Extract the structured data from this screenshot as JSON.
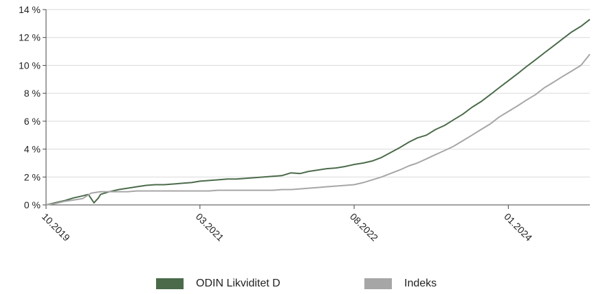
{
  "chart_data": {
    "type": "line",
    "title": "",
    "xlabel": "",
    "ylabel": "",
    "x_range": [
      "2019-10",
      "2024-10"
    ],
    "ylim": [
      0,
      14
    ],
    "y_ticks": [
      0,
      2,
      4,
      6,
      8,
      10,
      12,
      14
    ],
    "y_tick_labels": [
      "0 %",
      "2 %",
      "4 %",
      "6 %",
      "8 %",
      "10 %",
      "12 %",
      "14 %"
    ],
    "x_tick_labels": [
      "10.2019",
      "03.2021",
      "08.2022",
      "01.2024"
    ],
    "x_tick_values": [
      "2019-10",
      "2021-03",
      "2022-08",
      "2024-01"
    ],
    "grid": "horizontal",
    "legend_position": "bottom",
    "series": [
      {
        "name": "ODIN Likviditet D",
        "color": "#4a6a4a",
        "points": [
          [
            "2019-10",
            0.0
          ],
          [
            "2019-11",
            0.15
          ],
          [
            "2019-12",
            0.3
          ],
          [
            "2020-01",
            0.5
          ],
          [
            "2020-02",
            0.65
          ],
          [
            "2020-02-20",
            0.75
          ],
          [
            "2020-03-10",
            0.15
          ],
          [
            "2020-03-25",
            0.5
          ],
          [
            "2020-04",
            0.75
          ],
          [
            "2020-05",
            0.95
          ],
          [
            "2020-06",
            1.1
          ],
          [
            "2020-07",
            1.2
          ],
          [
            "2020-08",
            1.3
          ],
          [
            "2020-09",
            1.4
          ],
          [
            "2020-10",
            1.45
          ],
          [
            "2020-11",
            1.45
          ],
          [
            "2020-12",
            1.5
          ],
          [
            "2021-01",
            1.55
          ],
          [
            "2021-02",
            1.6
          ],
          [
            "2021-03",
            1.7
          ],
          [
            "2021-04",
            1.75
          ],
          [
            "2021-05",
            1.8
          ],
          [
            "2021-06",
            1.85
          ],
          [
            "2021-07",
            1.85
          ],
          [
            "2021-08",
            1.9
          ],
          [
            "2021-09",
            1.95
          ],
          [
            "2021-10",
            2.0
          ],
          [
            "2021-11",
            2.05
          ],
          [
            "2021-12",
            2.1
          ],
          [
            "2022-01",
            2.3
          ],
          [
            "2022-02",
            2.25
          ],
          [
            "2022-03",
            2.4
          ],
          [
            "2022-04",
            2.5
          ],
          [
            "2022-05",
            2.6
          ],
          [
            "2022-06",
            2.65
          ],
          [
            "2022-07",
            2.75
          ],
          [
            "2022-08",
            2.9
          ],
          [
            "2022-09",
            3.0
          ],
          [
            "2022-10",
            3.15
          ],
          [
            "2022-11",
            3.4
          ],
          [
            "2022-12",
            3.75
          ],
          [
            "2023-01",
            4.1
          ],
          [
            "2023-02",
            4.5
          ],
          [
            "2023-03",
            4.8
          ],
          [
            "2023-04",
            5.0
          ],
          [
            "2023-05",
            5.4
          ],
          [
            "2023-06",
            5.7
          ],
          [
            "2023-07",
            6.1
          ],
          [
            "2023-08",
            6.5
          ],
          [
            "2023-09",
            7.0
          ],
          [
            "2023-10",
            7.4
          ],
          [
            "2023-11",
            7.9
          ],
          [
            "2023-12",
            8.4
          ],
          [
            "2024-01",
            8.9
          ],
          [
            "2024-02",
            9.4
          ],
          [
            "2024-03",
            9.9
          ],
          [
            "2024-04",
            10.4
          ],
          [
            "2024-05",
            10.9
          ],
          [
            "2024-06",
            11.4
          ],
          [
            "2024-07",
            11.9
          ],
          [
            "2024-08",
            12.4
          ],
          [
            "2024-09",
            12.8
          ],
          [
            "2024-10",
            13.3
          ]
        ]
      },
      {
        "name": "Indeks",
        "color": "#a6a6a6",
        "points": [
          [
            "2019-10",
            0.0
          ],
          [
            "2019-11",
            0.1
          ],
          [
            "2019-12",
            0.25
          ],
          [
            "2020-01",
            0.35
          ],
          [
            "2020-02",
            0.45
          ],
          [
            "2020-03",
            0.85
          ],
          [
            "2020-04",
            0.95
          ],
          [
            "2020-05",
            0.95
          ],
          [
            "2020-06",
            0.95
          ],
          [
            "2020-07",
            0.95
          ],
          [
            "2020-08",
            1.0
          ],
          [
            "2020-09",
            1.0
          ],
          [
            "2020-10",
            1.0
          ],
          [
            "2020-11",
            1.0
          ],
          [
            "2020-12",
            1.0
          ],
          [
            "2021-01",
            1.0
          ],
          [
            "2021-02",
            1.0
          ],
          [
            "2021-03",
            1.0
          ],
          [
            "2021-04",
            1.0
          ],
          [
            "2021-05",
            1.05
          ],
          [
            "2021-06",
            1.05
          ],
          [
            "2021-07",
            1.05
          ],
          [
            "2021-08",
            1.05
          ],
          [
            "2021-09",
            1.05
          ],
          [
            "2021-10",
            1.05
          ],
          [
            "2021-11",
            1.05
          ],
          [
            "2021-12",
            1.1
          ],
          [
            "2022-01",
            1.1
          ],
          [
            "2022-02",
            1.15
          ],
          [
            "2022-03",
            1.2
          ],
          [
            "2022-04",
            1.25
          ],
          [
            "2022-05",
            1.3
          ],
          [
            "2022-06",
            1.35
          ],
          [
            "2022-07",
            1.4
          ],
          [
            "2022-08",
            1.45
          ],
          [
            "2022-09",
            1.6
          ],
          [
            "2022-10",
            1.8
          ],
          [
            "2022-11",
            2.0
          ],
          [
            "2022-12",
            2.25
          ],
          [
            "2023-01",
            2.5
          ],
          [
            "2023-02",
            2.8
          ],
          [
            "2023-03",
            3.0
          ],
          [
            "2023-04",
            3.3
          ],
          [
            "2023-05",
            3.6
          ],
          [
            "2023-06",
            3.9
          ],
          [
            "2023-07",
            4.2
          ],
          [
            "2023-08",
            4.6
          ],
          [
            "2023-09",
            5.0
          ],
          [
            "2023-10",
            5.4
          ],
          [
            "2023-11",
            5.8
          ],
          [
            "2023-12",
            6.3
          ],
          [
            "2024-01",
            6.7
          ],
          [
            "2024-02",
            7.1
          ],
          [
            "2024-03",
            7.5
          ],
          [
            "2024-04",
            7.9
          ],
          [
            "2024-05",
            8.4
          ],
          [
            "2024-06",
            8.8
          ],
          [
            "2024-07",
            9.2
          ],
          [
            "2024-08",
            9.6
          ],
          [
            "2024-09",
            10.0
          ],
          [
            "2024-10",
            10.8
          ]
        ]
      }
    ]
  },
  "legend": {
    "items": [
      {
        "label": "ODIN Likviditet D",
        "color": "#4a6a4a"
      },
      {
        "label": "Indeks",
        "color": "#a6a6a6"
      }
    ]
  }
}
